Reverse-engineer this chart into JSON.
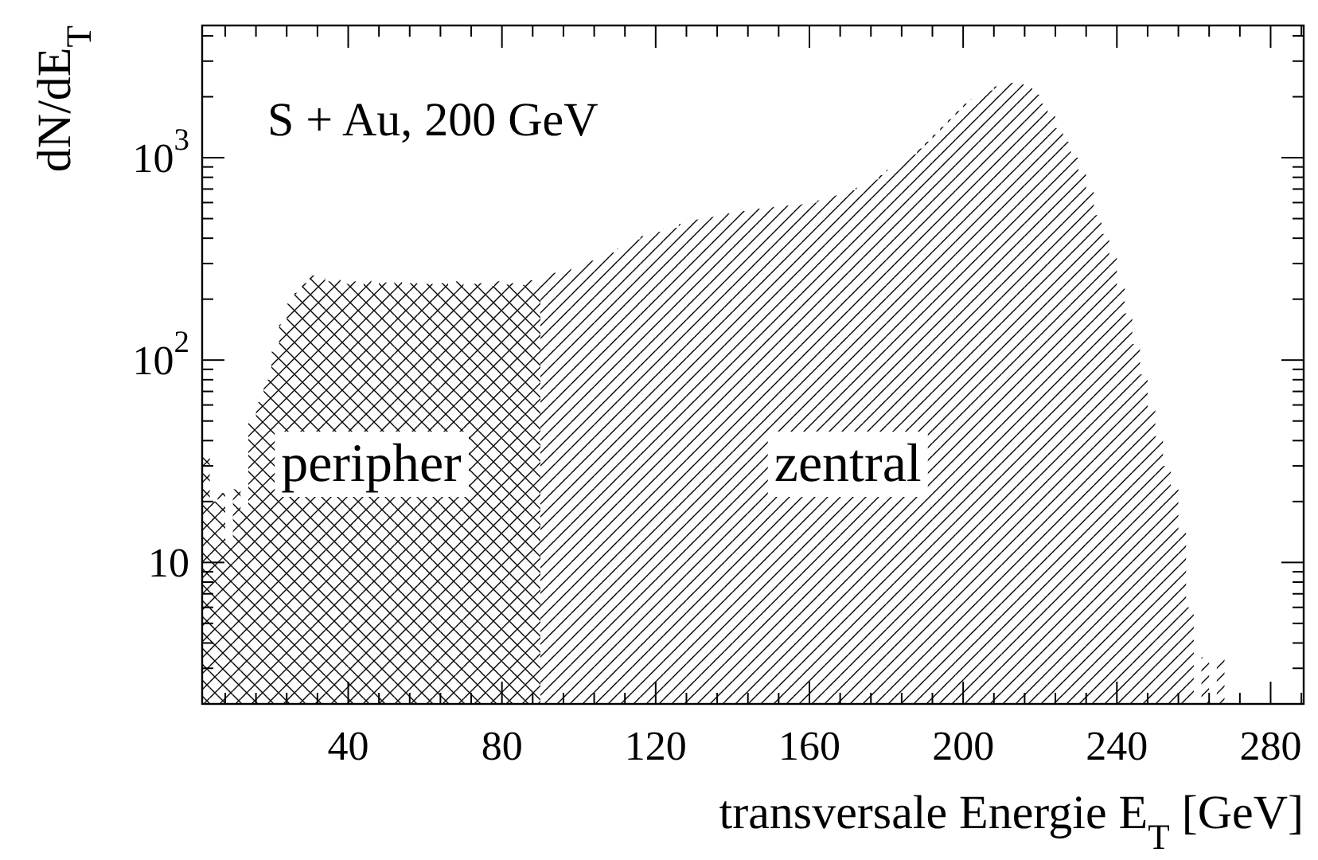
{
  "chart_data": {
    "type": "histogram",
    "xlabel": "transversale Energie E$_{T}$ [GeV]",
    "ylabel": "dN/dE$_{T}$",
    "annotations": [
      "S + Au, 200 GeV"
    ],
    "log": true,
    "xlim": [
      2,
      288.6
    ],
    "ylim": [
      2,
      4500
    ],
    "xticks": [
      {
        "value": 8,
        "label": null
      },
      {
        "value": 16,
        "label": null
      },
      {
        "value": 24,
        "label": null
      },
      {
        "value": 32,
        "label": null
      },
      40,
      {
        "value": 48,
        "label": null
      },
      {
        "value": 56,
        "label": null
      },
      {
        "value": 64,
        "label": null
      },
      {
        "value": 72,
        "label": null
      },
      80,
      {
        "value": 88,
        "label": null
      },
      {
        "value": 96,
        "label": null
      },
      {
        "value": 104,
        "label": null
      },
      {
        "value": 112,
        "label": null
      },
      120,
      {
        "value": 128,
        "label": null
      },
      {
        "value": 136,
        "label": null
      },
      {
        "value": 144,
        "label": null
      },
      {
        "value": 152,
        "label": null
      },
      160,
      {
        "value": 168,
        "label": null
      },
      {
        "value": 176,
        "label": null
      },
      {
        "value": 184,
        "label": null
      },
      {
        "value": 192,
        "label": null
      },
      200,
      {
        "value": 208,
        "label": null
      },
      {
        "value": 216,
        "label": null
      },
      {
        "value": 224,
        "label": null
      },
      {
        "value": 232,
        "label": null
      },
      240,
      {
        "value": 248,
        "label": null
      },
      {
        "value": 256,
        "label": null
      },
      {
        "value": 264,
        "label": null
      },
      {
        "value": 272,
        "label": null
      },
      280,
      {
        "value": 288,
        "label": null
      }
    ],
    "yticks": [
      {
        "value": 3,
        "label": null
      },
      {
        "value": 4,
        "label": null
      },
      {
        "value": 5,
        "label": null
      },
      {
        "value": 6,
        "label": null
      },
      {
        "value": 7,
        "label": null
      },
      {
        "value": 8,
        "label": null
      },
      {
        "value": 9,
        "label": null
      },
      10,
      {
        "value": 20,
        "label": null
      },
      {
        "value": 30,
        "label": null
      },
      {
        "value": 40,
        "label": null
      },
      {
        "value": 50,
        "label": null
      },
      {
        "value": 60,
        "label": null
      },
      {
        "value": 70,
        "label": null
      },
      {
        "value": 80,
        "label": null
      },
      {
        "value": 90,
        "label": null
      },
      {
        "value": 100,
        "label": "10$^{2}$"
      },
      {
        "value": 200,
        "label": null
      },
      {
        "value": 300,
        "label": null
      },
      {
        "value": 400,
        "label": null
      },
      {
        "value": 500,
        "label": null
      },
      {
        "value": 600,
        "label": null
      },
      {
        "value": 700,
        "label": null
      },
      {
        "value": 800,
        "label": null
      },
      {
        "value": 900,
        "label": null
      },
      {
        "value": 1000,
        "label": "10$^{3}$"
      },
      {
        "value": 2000,
        "label": null
      },
      {
        "value": 3000,
        "label": null
      },
      {
        "value": 4000,
        "label": null
      }
    ],
    "bins": [
      2,
      4,
      6,
      8,
      10,
      12,
      14,
      16,
      18,
      20,
      22,
      24,
      26,
      28,
      30,
      32,
      34,
      36,
      38,
      40,
      42,
      44,
      46,
      48,
      50,
      52,
      54,
      56,
      58,
      60,
      62,
      64,
      66,
      68,
      70,
      72,
      74,
      76,
      78,
      80,
      82,
      84,
      86,
      88,
      90,
      92,
      94,
      96,
      98,
      100,
      102,
      104,
      106,
      108,
      110,
      112,
      114,
      116,
      118,
      120,
      122,
      124,
      126,
      128,
      130,
      132,
      134,
      136,
      138,
      140,
      142,
      144,
      146,
      148,
      150,
      152,
      154,
      156,
      158,
      160,
      162,
      164,
      166,
      168,
      170,
      172,
      174,
      176,
      178,
      180,
      182,
      184,
      186,
      188,
      190,
      192,
      194,
      196,
      198,
      200,
      202,
      204,
      206,
      208,
      210,
      212,
      214,
      216,
      218,
      220,
      222,
      224,
      226,
      228,
      230,
      232,
      234,
      236,
      238,
      240,
      242,
      244,
      246,
      248,
      250,
      252,
      254,
      256,
      258,
      260,
      262,
      264,
      266,
      268
    ],
    "series": [
      {
        "name": "peripher",
        "color": "#000000",
        "values": [
          35,
          20,
          22,
          13,
          23,
          18,
          50,
          62,
          80,
          110,
          150,
          190,
          215,
          240,
          262,
          255,
          245,
          250,
          238,
          245,
          232,
          250,
          236,
          242,
          228,
          245,
          235,
          240,
          230,
          238,
          228,
          240,
          232,
          245,
          228,
          238,
          240,
          232,
          245,
          236,
          240,
          235,
          248,
          232,
          null,
          null,
          null,
          null,
          null,
          null,
          null,
          null,
          null,
          null,
          null,
          null,
          null,
          null,
          null,
          null,
          null,
          null,
          null,
          null,
          null,
          null,
          null,
          null,
          null,
          null,
          null,
          null,
          null,
          null,
          null,
          null,
          null,
          null,
          null,
          null,
          null,
          null,
          null,
          null,
          null,
          null,
          null,
          null,
          null,
          null,
          null,
          null,
          null,
          null,
          null,
          null,
          null,
          null,
          null,
          null,
          null,
          null,
          null,
          null,
          null,
          null,
          null,
          null,
          null,
          null,
          null,
          null,
          null,
          null,
          null,
          null,
          null,
          null,
          null,
          null,
          null,
          null,
          null,
          null,
          null,
          null,
          null,
          null,
          null,
          null,
          null,
          null,
          null
        ]
      },
      {
        "name": "zentral",
        "color": "#000000",
        "values": [
          null,
          null,
          null,
          null,
          null,
          null,
          null,
          null,
          null,
          null,
          null,
          null,
          null,
          null,
          null,
          null,
          null,
          null,
          null,
          null,
          null,
          null,
          null,
          null,
          null,
          null,
          null,
          null,
          null,
          null,
          null,
          null,
          null,
          null,
          null,
          null,
          null,
          null,
          null,
          null,
          null,
          null,
          null,
          null,
          255,
          270,
          262,
          285,
          275,
          300,
          310,
          305,
          330,
          340,
          355,
          370,
          395,
          410,
          420,
          430,
          445,
          450,
          470,
          480,
          495,
          500,
          510,
          520,
          530,
          540,
          545,
          555,
          560,
          565,
          570,
          575,
          580,
          585,
          590,
          600,
          615,
          630,
          650,
          670,
          690,
          710,
          740,
          780,
          820,
          870,
          920,
          980,
          1040,
          1110,
          1200,
          1300,
          1420,
          1550,
          1700,
          1850,
          1950,
          2050,
          2150,
          2250,
          2330,
          2340,
          2300,
          2200,
          2050,
          1850,
          1600,
          1400,
          1200,
          1000,
          830,
          680,
          520,
          420,
          320,
          230,
          170,
          120,
          85,
          58,
          42,
          30,
          24,
          14,
          6,
          null,
          3.4,
          null,
          3.4
        ]
      }
    ]
  }
}
